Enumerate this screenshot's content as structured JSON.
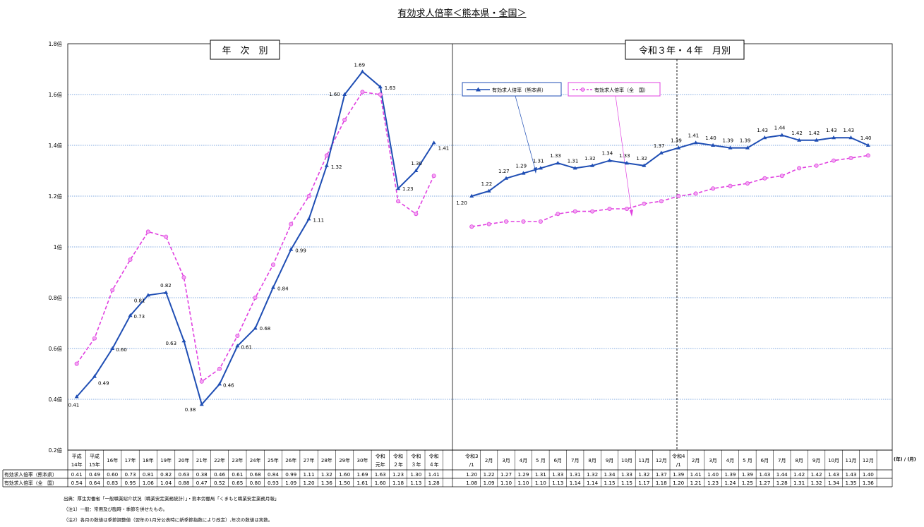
{
  "title": "有効求人倍率＜熊本県・全国＞",
  "panels": {
    "annual": "年　次　別",
    "monthly": "令和３年・４年　月別"
  },
  "unit_label": "(年) / (月)",
  "colors": {
    "kumamoto": "#1f4eb4",
    "national": "#e040e0",
    "grid": "#5a8fd6"
  },
  "notes": [
    "出典：厚生労働省「一般職業紹介状況（職業安定業務統計）」・熊本労働局「くまもと職業安定業務月報」",
    "（注1）一般：常用及び臨時・季節を併せたもの。",
    "（注2）各月の数値は季節調整値（翌年の1月分公表時に新季節指数により改定）,年次の数値は実数。"
  ],
  "chart_data": {
    "type": "line",
    "ylim": [
      0.2,
      1.8
    ],
    "yticks": [
      "0.2倍",
      "0.4倍",
      "0.6倍",
      "0.8倍",
      "1倍",
      "1.2倍",
      "1.4倍",
      "1.6倍",
      "1.8倍"
    ],
    "categories": [
      [
        "平成",
        "14年"
      ],
      [
        "平成",
        "15年"
      ],
      [
        "16年"
      ],
      [
        "17年"
      ],
      [
        "18年"
      ],
      [
        "19年"
      ],
      [
        "20年"
      ],
      [
        "21年"
      ],
      [
        "22年"
      ],
      [
        "23年"
      ],
      [
        "24年"
      ],
      [
        "25年"
      ],
      [
        "26年"
      ],
      [
        "27年"
      ],
      [
        "28年"
      ],
      [
        "29年"
      ],
      [
        "30年"
      ],
      [
        "令和",
        "元年"
      ],
      [
        "令和",
        "２年"
      ],
      [
        "令和",
        "３年"
      ],
      [
        "令和",
        "４年"
      ],
      [
        "令和3",
        "/1"
      ],
      [
        "2月"
      ],
      [
        "3月"
      ],
      [
        "4月"
      ],
      [
        "5 月"
      ],
      [
        "6月"
      ],
      [
        "7月"
      ],
      [
        "8月"
      ],
      [
        "9月"
      ],
      [
        "10月"
      ],
      [
        "11月"
      ],
      [
        "12月"
      ],
      [
        "令和4",
        "/1"
      ],
      [
        "2月"
      ],
      [
        "3月"
      ],
      [
        "4月"
      ],
      [
        "5 月"
      ],
      [
        "6月"
      ],
      [
        "7月"
      ],
      [
        "8月"
      ],
      [
        "9月"
      ],
      [
        "10月"
      ],
      [
        "11月"
      ],
      [
        "12月"
      ]
    ],
    "series": [
      {
        "name": "有効求人倍率（熊本県）",
        "values": [
          0.41,
          0.49,
          0.6,
          0.73,
          0.81,
          0.82,
          0.63,
          0.38,
          0.46,
          0.61,
          0.68,
          0.84,
          0.99,
          1.11,
          1.32,
          1.6,
          1.69,
          1.63,
          1.23,
          1.3,
          1.41,
          1.2,
          1.22,
          1.27,
          1.29,
          1.31,
          1.33,
          1.31,
          1.32,
          1.34,
          1.33,
          1.32,
          1.37,
          1.39,
          1.41,
          1.4,
          1.39,
          1.39,
          1.43,
          1.44,
          1.42,
          1.42,
          1.43,
          1.43,
          1.4
        ],
        "display": [
          "0.41",
          "0.49",
          "0.60",
          "0.73",
          "0.81",
          "0.82",
          "0.63",
          "0.38",
          "0.46",
          "0.61",
          "0.68",
          "0.84",
          "0.99",
          "1.11",
          "1.32",
          "1.60",
          "1.69",
          "1.63",
          "1.23",
          "1.30",
          "1.41",
          "1.20",
          "1.22",
          "1.27",
          "1.29",
          "1.31",
          "1.33",
          "1.31",
          "1.32",
          "1.34",
          "1.33",
          "1.32",
          "1.37",
          "1.39",
          "1.41",
          "1.40",
          "1.39",
          "1.39",
          "1.43",
          "1.44",
          "1.42",
          "1.42",
          "1.43",
          "1.43",
          "1.40"
        ]
      },
      {
        "name": "有効求人倍率（全　国）",
        "legend": "有効求人倍率（全　国）",
        "values": [
          0.54,
          0.64,
          0.83,
          0.95,
          1.06,
          1.04,
          0.88,
          0.47,
          0.52,
          0.65,
          0.8,
          0.93,
          1.09,
          1.2,
          1.36,
          1.5,
          1.61,
          1.6,
          1.18,
          1.13,
          1.28,
          1.08,
          1.09,
          1.1,
          1.1,
          1.1,
          1.13,
          1.14,
          1.14,
          1.15,
          1.15,
          1.17,
          1.18,
          1.2,
          1.21,
          1.23,
          1.24,
          1.25,
          1.27,
          1.28,
          1.31,
          1.32,
          1.34,
          1.35,
          1.36
        ],
        "display": [
          "0.54",
          "0.64",
          "0.83",
          "0.95",
          "1.06",
          "1.04",
          "0.88",
          "0.47",
          "0.52",
          "0.65",
          "0.80",
          "0.93",
          "1.09",
          "1.20",
          "1.36",
          "1.50",
          "1.61",
          "1.60",
          "1.18",
          "1.13",
          "1.28",
          "1.08",
          "1.09",
          "1.10",
          "1.10",
          "1.10",
          "1.13",
          "1.14",
          "1.14",
          "1.15",
          "1.15",
          "1.17",
          "1.18",
          "1.20",
          "1.21",
          "1.23",
          "1.24",
          "1.25",
          "1.27",
          "1.28",
          "1.31",
          "1.32",
          "1.34",
          "1.35",
          "1.36"
        ]
      }
    ],
    "table_row_labels": [
      "有効求人倍率（熊本県）",
      "有効求人倍率（全　国）"
    ],
    "legend_labels": [
      "有効求人倍率（熊本県）",
      "有効求人倍率（全　国）"
    ]
  }
}
